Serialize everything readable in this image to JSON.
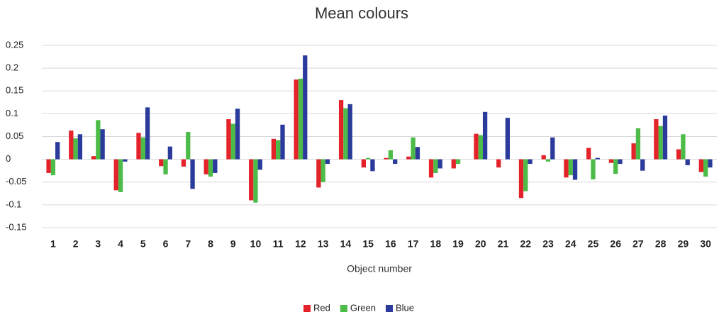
{
  "chart_data": {
    "type": "bar",
    "title": "Mean colours",
    "x_label": "Object number",
    "categories": [
      "1",
      "2",
      "3",
      "4",
      "5",
      "6",
      "7",
      "8",
      "9",
      "10",
      "11",
      "12",
      "13",
      "14",
      "15",
      "16",
      "17",
      "18",
      "19",
      "20",
      "21",
      "22",
      "23",
      "24",
      "25",
      "26",
      "27",
      "28",
      "29",
      "30"
    ],
    "series": [
      {
        "name": "Red",
        "color": "#e32229",
        "values": [
          -0.03,
          0.063,
          0.007,
          -0.068,
          0.058,
          -0.015,
          -0.016,
          -0.033,
          0.088,
          -0.09,
          0.045,
          0.175,
          -0.062,
          0.13,
          -0.018,
          0.003,
          0.006,
          -0.04,
          -0.02,
          0.056,
          -0.018,
          -0.085,
          0.009,
          -0.04,
          0.025,
          -0.008,
          0.035,
          0.088,
          0.022,
          -0.028
        ]
      },
      {
        "name": "Green",
        "color": "#4cbb47",
        "values": [
          -0.035,
          0.046,
          0.086,
          -0.072,
          0.048,
          -0.033,
          0.06,
          -0.038,
          0.078,
          -0.095,
          0.042,
          0.177,
          -0.05,
          0.112,
          0.003,
          0.02,
          0.048,
          -0.03,
          -0.01,
          0.053,
          0,
          -0.07,
          -0.005,
          -0.035,
          -0.044,
          -0.032,
          0.068,
          0.073,
          0.055,
          -0.038
        ]
      },
      {
        "name": "Blue",
        "color": "#2b3b9b",
        "values": [
          0.038,
          0.055,
          0.066,
          -0.005,
          0.114,
          0.028,
          -0.065,
          -0.03,
          0.111,
          -0.023,
          0.076,
          0.228,
          -0.01,
          0.121,
          -0.026,
          -0.01,
          0.027,
          -0.02,
          0,
          0.104,
          0.091,
          -0.01,
          0.048,
          -0.045,
          0.003,
          -0.01,
          -0.025,
          0.096,
          -0.013,
          -0.018
        ]
      }
    ],
    "ylim": [
      -0.15,
      0.25
    ],
    "yticks": [
      -0.15,
      -0.1,
      -0.05,
      0,
      0.05,
      0.1,
      0.15,
      0.2,
      0.25
    ],
    "grid": true,
    "legend": "bottom"
  }
}
